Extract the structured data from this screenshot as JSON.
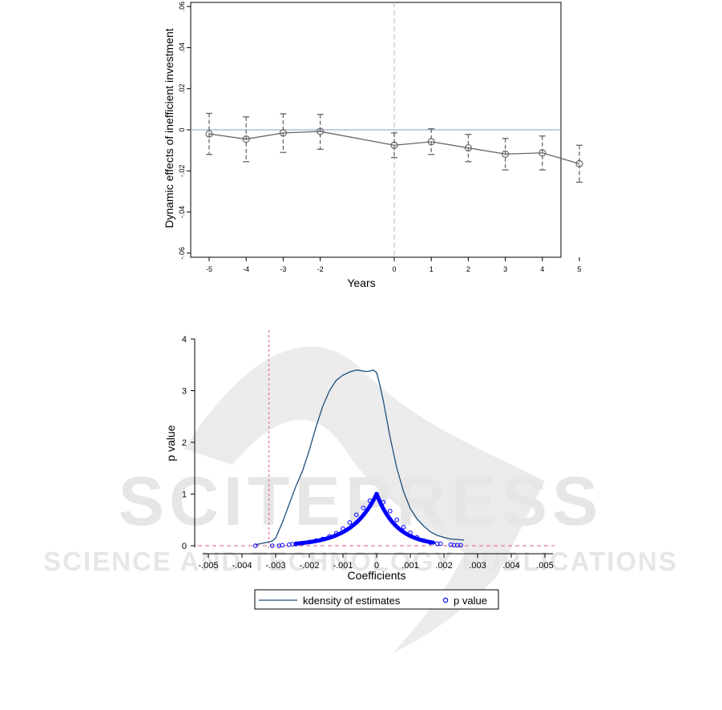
{
  "chart_data": [
    {
      "type": "line",
      "title": "",
      "xlabel": "Years",
      "ylabel": "Dynamic effects of inefficient investment",
      "x": [
        -5,
        -4,
        -3,
        -2,
        0,
        1,
        2,
        3,
        4,
        5
      ],
      "x_tick_labels": [
        "-5",
        "-4",
        "-3",
        "-2",
        "0",
        "1",
        "2",
        "3",
        "4",
        "5"
      ],
      "y_tick_labels": [
        "-.06",
        "-.04",
        "-.02",
        "0",
        ".02",
        ".04",
        ".06"
      ],
      "y_ticks": [
        -0.06,
        -0.04,
        -0.02,
        0,
        0.02,
        0.04,
        0.06
      ],
      "ylim": [
        -0.062,
        0.062
      ],
      "series": [
        {
          "values": [
            -0.002,
            -0.0045,
            -0.0015,
            -0.0008,
            -0.0075,
            -0.0058,
            -0.0088,
            -0.0118,
            -0.0112,
            -0.0165
          ],
          "ci_low": [
            -0.012,
            -0.0155,
            -0.011,
            -0.0095,
            -0.0135,
            -0.012,
            -0.0155,
            -0.0195,
            -0.0195,
            -0.0255
          ],
          "ci_high": [
            0.008,
            0.0063,
            0.0078,
            0.0075,
            -0.0015,
            0.0005,
            -0.0022,
            -0.0042,
            -0.003,
            -0.0075
          ]
        }
      ],
      "reference_lines": {
        "y": 0,
        "x": 0
      },
      "grid": false,
      "colors": {
        "line": "#666666",
        "ref_h": "#9fb3c8",
        "ref_v": "#c0c0c0"
      }
    },
    {
      "type": "line",
      "title": "",
      "xlabel": "Coefficients",
      "ylabel": "p value",
      "x_tick_labels": [
        "-.005",
        "-.004",
        "-.003",
        "-.002",
        "-.001",
        "0",
        ".001",
        ".002",
        ".003",
        ".004",
        ".005"
      ],
      "x_ticks": [
        -0.005,
        -0.004,
        -0.003,
        -0.002,
        -0.001,
        0,
        0.001,
        0.002,
        0.003,
        0.004,
        0.005
      ],
      "y_tick_labels": [
        "0",
        "1",
        "2",
        "3",
        "4"
      ],
      "y_ticks": [
        0,
        1,
        2,
        3,
        4
      ],
      "xlim": [
        -0.0053,
        0.0053
      ],
      "ylim": [
        0,
        4
      ],
      "series": [
        {
          "name": "kdensity of estimates",
          "kind": "line",
          "x": [
            -0.0036,
            -0.0033,
            -0.0031,
            -0.003,
            -0.0028,
            -0.0026,
            -0.0024,
            -0.0022,
            -0.002,
            -0.0018,
            -0.0016,
            -0.0014,
            -0.0012,
            -0.001,
            -0.0008,
            -0.0006,
            -0.0004,
            -0.0003,
            -0.0002,
            -0.0001,
            0,
            0.0001,
            0.0002,
            0.0003,
            0.0004,
            0.0006,
            0.0008,
            0.001,
            0.0012,
            0.0014,
            0.0016,
            0.0018,
            0.002,
            0.0022,
            0.0024,
            0.0026
          ],
          "values": [
            0.02,
            0.06,
            0.09,
            0.15,
            0.45,
            0.8,
            1.15,
            1.45,
            1.85,
            2.3,
            2.7,
            3.0,
            3.2,
            3.3,
            3.36,
            3.4,
            3.38,
            3.37,
            3.38,
            3.4,
            3.35,
            3.1,
            2.8,
            2.45,
            2.1,
            1.5,
            1.05,
            0.72,
            0.52,
            0.38,
            0.27,
            0.2,
            0.16,
            0.13,
            0.12,
            0.11
          ]
        },
        {
          "name": "p value",
          "kind": "points",
          "x": [
            -0.0036,
            -0.0031,
            -0.0029,
            -0.0028,
            -0.0026,
            -0.0025,
            -0.0024,
            -0.0022,
            -0.002,
            -0.0018,
            -0.0016,
            -0.0014,
            -0.0012,
            -0.001,
            -0.0008,
            -0.0006,
            -0.0004,
            -0.0002,
            0,
            0.0002,
            0.0004,
            0.0006,
            0.0008,
            0.001,
            0.0012,
            0.0014,
            0.0016,
            0.0018,
            0.0019,
            0.0022,
            0.0023,
            0.0024,
            0.0025
          ],
          "values": [
            0.0,
            0.0,
            0.0,
            0.01,
            0.02,
            0.03,
            0.03,
            0.05,
            0.07,
            0.1,
            0.13,
            0.18,
            0.24,
            0.33,
            0.45,
            0.6,
            0.73,
            0.87,
            1.0,
            0.84,
            0.67,
            0.5,
            0.36,
            0.25,
            0.16,
            0.1,
            0.06,
            0.04,
            0.04,
            0.02,
            0.01,
            0.01,
            0.01
          ]
        }
      ],
      "reference_lines": {
        "y": 0,
        "x": -0.0032
      },
      "legend": {
        "position": "bottom",
        "items": [
          "kdensity of estimates",
          "p value"
        ]
      },
      "grid": false,
      "colors": {
        "line": "#1f4e79",
        "points": "#0000ff",
        "ref": "#e06070"
      }
    }
  ],
  "watermark": {
    "big": "SCITEPRESS",
    "small": "SCIENCE AND TECHNOLOGY PUBLICATIONS",
    "color": "#d6d6d6"
  }
}
